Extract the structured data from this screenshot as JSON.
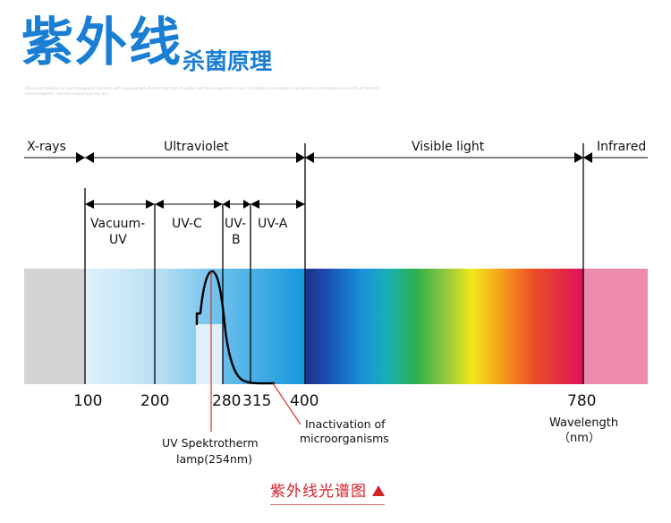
{
  "header": {
    "title": "紫外线",
    "subtitle": "杀菌原理",
    "fine_print": "Ultraviolet radiation is electromagnetic radiation with a wavelength shorter than that of visible light but longer than X-rays. UV radiation is present in sunlight and contributes about 10% of the total electromagnetic radiation output from the Sun."
  },
  "bands": {
    "xrays": "X-rays",
    "ultraviolet": "Ultraviolet",
    "visible": "Visible light",
    "infrared": "Infrared"
  },
  "uv_bands": {
    "vacuum_uv_line1": "Vacuum-",
    "vacuum_uv_line2": "UV",
    "uvc": "UV-C",
    "uvb_line1": "UV-",
    "uvb_line2": "B",
    "uva": "UV-A"
  },
  "ticks": [
    "100",
    "200",
    "280",
    "315",
    "400",
    "780"
  ],
  "annotations": {
    "inactivation_line1": "Inactivation of",
    "inactivation_line2": "microorganisms",
    "lamp_line1": "UV Spektrotherm",
    "lamp_line2": "lamp(254nm)",
    "wavelength_line1": "Wavelength",
    "wavelength_line2": "（nm）"
  },
  "caption": "紫外线光谱图",
  "colors": {
    "title": "#1a7fd4",
    "caption": "#d8202a",
    "xray_band": "#d4d4d4",
    "infrared_band": "#ee8aae"
  }
}
